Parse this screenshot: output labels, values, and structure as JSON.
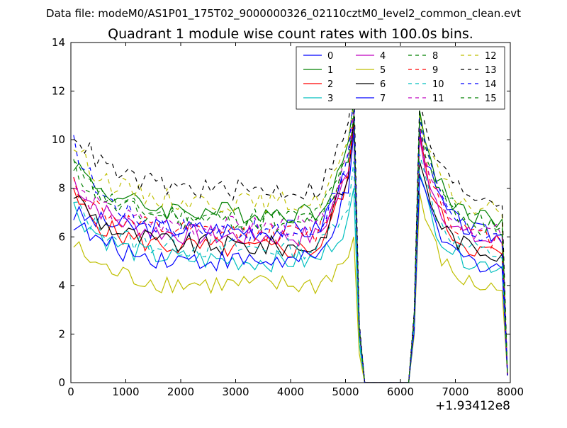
{
  "suptitle": "Data file: modeM0/AS1P01_175T02_9000000326_02110cztM0_level2_common_clean.evt",
  "chart_data": {
    "type": "line",
    "title": "Quadrant 1 module wise count rates with 100.0s bins.",
    "xlabel": "",
    "ylabel": "",
    "x_offset_label": "+1.93412e8",
    "xlim": [
      0,
      8000
    ],
    "ylim": [
      0,
      14
    ],
    "xticks": [
      "0",
      "1000",
      "2000",
      "3000",
      "4000",
      "5000",
      "6000",
      "7000",
      "8000"
    ],
    "yticks": [
      "0",
      "2",
      "4",
      "6",
      "8",
      "10",
      "12",
      "14"
    ],
    "legend_position": "top-right",
    "x": [
      50,
      150,
      250,
      350,
      450,
      550,
      650,
      750,
      850,
      950,
      1050,
      1150,
      1250,
      1350,
      1450,
      1550,
      1650,
      1750,
      1850,
      1950,
      2050,
      2150,
      2250,
      2350,
      2450,
      2550,
      2650,
      2750,
      2850,
      2950,
      3050,
      3150,
      3250,
      3350,
      3450,
      3550,
      3650,
      3750,
      3850,
      3950,
      4050,
      4150,
      4250,
      4350,
      4450,
      4550,
      4650,
      4750,
      4850,
      4950,
      5050,
      5150,
      5250,
      5350,
      5450,
      5550,
      5650,
      5750,
      5850,
      5950,
      6050,
      6150,
      6250,
      6350,
      6450,
      6550,
      6650,
      6750,
      6850,
      6950,
      7050,
      7150,
      7250,
      7350,
      7450,
      7550,
      7650,
      7750,
      7850,
      7950
    ],
    "series": [
      {
        "name": "0",
        "color": "#0000ff",
        "dash": "solid",
        "base": 6.3,
        "start": 7.0,
        "peak1": 10.9,
        "peak2": 10.4
      },
      {
        "name": "1",
        "color": "#008000",
        "dash": "solid",
        "base": 7.0,
        "start": 9.3,
        "peak1": 11.6,
        "peak2": 11.2
      },
      {
        "name": "2",
        "color": "#ff0000",
        "dash": "solid",
        "base": 5.5,
        "start": 7.8,
        "peak1": 10.5,
        "peak2": 10.2
      },
      {
        "name": "3",
        "color": "#00bfbf",
        "dash": "solid",
        "base": 5.0,
        "start": 7.4,
        "peak1": 8.0,
        "peak2": 8.6
      },
      {
        "name": "4",
        "color": "#bf00bf",
        "dash": "solid",
        "base": 6.0,
        "start": 8.6,
        "peak1": 10.6,
        "peak2": 10.1
      },
      {
        "name": "5",
        "color": "#bfbf00",
        "dash": "solid",
        "base": 4.0,
        "start": 5.8,
        "peak1": 6.0,
        "peak2": 7.8
      },
      {
        "name": "6",
        "color": "#000000",
        "dash": "solid",
        "base": 5.6,
        "start": 8.0,
        "peak1": 10.8,
        "peak2": 9.1
      },
      {
        "name": "7",
        "color": "#0000ff",
        "dash": "solid",
        "base": 5.0,
        "start": 6.8,
        "peak1": 10.3,
        "peak2": 8.5
      },
      {
        "name": "8",
        "color": "#008000",
        "dash": "dashed",
        "base": 6.8,
        "start": 9.0,
        "peak1": 11.3,
        "peak2": 11.1
      },
      {
        "name": "9",
        "color": "#ff0000",
        "dash": "dashed",
        "base": 6.1,
        "start": 8.4,
        "peak1": 11.0,
        "peak2": 10.6
      },
      {
        "name": "10",
        "color": "#00bfbf",
        "dash": "dashed",
        "base": 5.5,
        "start": 7.5,
        "peak1": 9.1,
        "peak2": 9.4
      },
      {
        "name": "11",
        "color": "#bf00bf",
        "dash": "dashed",
        "base": 6.4,
        "start": 8.2,
        "peak1": 11.1,
        "peak2": 10.6
      },
      {
        "name": "12",
        "color": "#bfbf00",
        "dash": "dashed",
        "base": 7.4,
        "start": 10.0,
        "peak1": 11.5,
        "peak2": 11.0
      },
      {
        "name": "13",
        "color": "#000000",
        "dash": "dashed",
        "base": 7.9,
        "start": 10.6,
        "peak1": 12.5,
        "peak2": 11.6
      },
      {
        "name": "14",
        "color": "#0000ff",
        "dash": "dashed",
        "base": 6.2,
        "start": 10.1,
        "peak1": 11.8,
        "peak2": 10.9
      },
      {
        "name": "15",
        "color": "#008000",
        "dash": "dashed",
        "base": 6.6,
        "start": 9.1,
        "peak1": 11.0,
        "peak2": 10.8
      }
    ]
  }
}
